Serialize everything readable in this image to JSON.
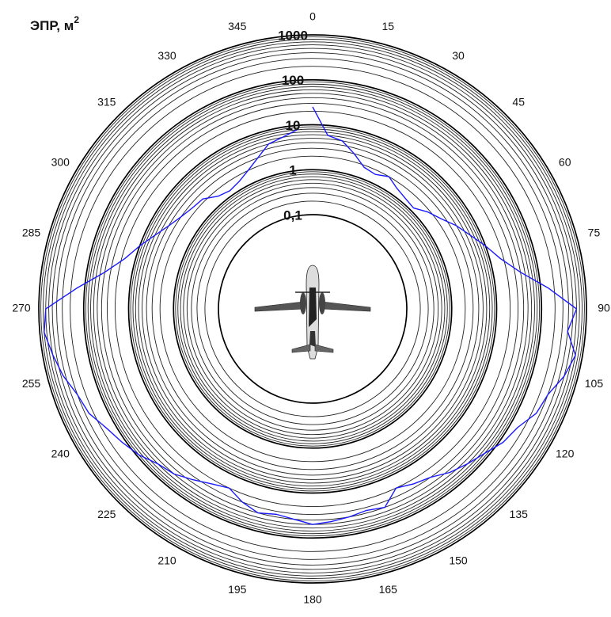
{
  "chart_data": {
    "type": "polar",
    "title": "ЭПР, м",
    "title_superscript": "2",
    "log_scale": true,
    "minor_grid": true,
    "rlim": [
      0.1,
      1000
    ],
    "rticks": [
      {
        "value": 0.1,
        "label": "0,1"
      },
      1,
      10,
      100,
      1000
    ],
    "thetaticks": [
      0,
      15,
      30,
      45,
      60,
      75,
      90,
      105,
      120,
      135,
      150,
      165,
      180,
      195,
      210,
      225,
      240,
      255,
      270,
      285,
      300,
      315,
      330,
      345
    ],
    "direction": "clockwise",
    "series": [
      {
        "color": "#1a1aff",
        "theta": [
          0,
          5,
          10,
          15,
          20,
          25,
          30,
          35,
          40,
          45,
          50,
          55,
          60,
          65,
          70,
          75,
          80,
          85,
          90,
          95,
          100,
          105,
          110,
          115,
          120,
          125,
          130,
          135,
          140,
          145,
          150,
          155,
          160,
          165,
          170,
          175,
          180,
          185,
          190,
          195,
          200,
          205,
          210,
          215,
          220,
          225,
          230,
          235,
          240,
          245,
          250,
          255,
          260,
          265,
          270,
          275,
          280,
          285,
          290,
          295,
          300,
          305,
          310,
          315,
          320,
          325,
          330,
          335,
          340,
          345,
          350,
          355
        ],
        "values": [
          25,
          6,
          5,
          3,
          1.8,
          1.6,
          2,
          1.5,
          1.3,
          1.2,
          1.8,
          2.5,
          4,
          6,
          10,
          17,
          40,
          150,
          600,
          400,
          700,
          500,
          300,
          250,
          150,
          120,
          80,
          60,
          45,
          30,
          25,
          20,
          40,
          35,
          40,
          45,
          50,
          40,
          35,
          40,
          30,
          20,
          25,
          35,
          50,
          60,
          90,
          120,
          160,
          250,
          300,
          450,
          600,
          800,
          700,
          150,
          40,
          17,
          10,
          6,
          4,
          3,
          2.5,
          2.3,
          1.5,
          1.3,
          1.5,
          2,
          3,
          5,
          6,
          8
        ]
      }
    ]
  }
}
